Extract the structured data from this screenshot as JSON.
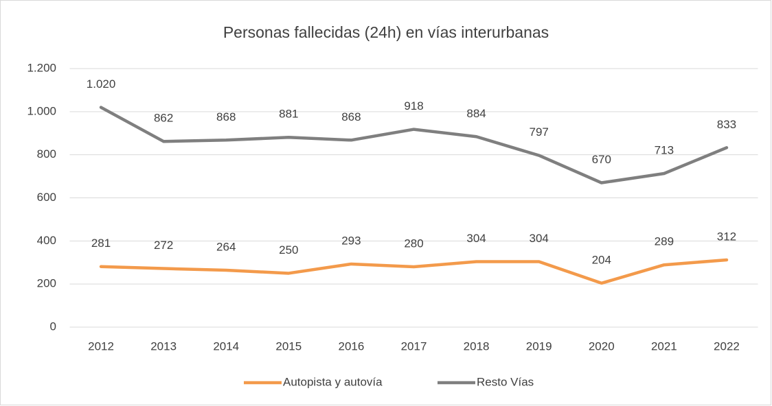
{
  "chart_data": {
    "type": "line",
    "title": "Personas fallecidas (24h) en vías interurbanas",
    "categories": [
      "2012",
      "2013",
      "2014",
      "2015",
      "2016",
      "2017",
      "2018",
      "2019",
      "2020",
      "2021",
      "2022"
    ],
    "series": [
      {
        "name": "Autopista y autovía",
        "color": "#f39a4b",
        "values": [
          281,
          272,
          264,
          250,
          293,
          280,
          304,
          304,
          204,
          289,
          312
        ]
      },
      {
        "name": "Resto Vías",
        "color": "#7f7f7f",
        "values": [
          1020,
          862,
          868,
          881,
          868,
          918,
          884,
          797,
          670,
          713,
          833
        ],
        "value_labels": [
          "1.020",
          "862",
          "868",
          "881",
          "868",
          "918",
          "884",
          "797",
          "670",
          "713",
          "833"
        ]
      }
    ],
    "ylim": [
      0,
      1200
    ],
    "yticks": [
      0,
      200,
      400,
      600,
      800,
      {
        "value": 1000,
        "label": "1.000"
      },
      {
        "value": 1200,
        "label": "1.200"
      }
    ],
    "grid": true,
    "legend": "bottom"
  }
}
